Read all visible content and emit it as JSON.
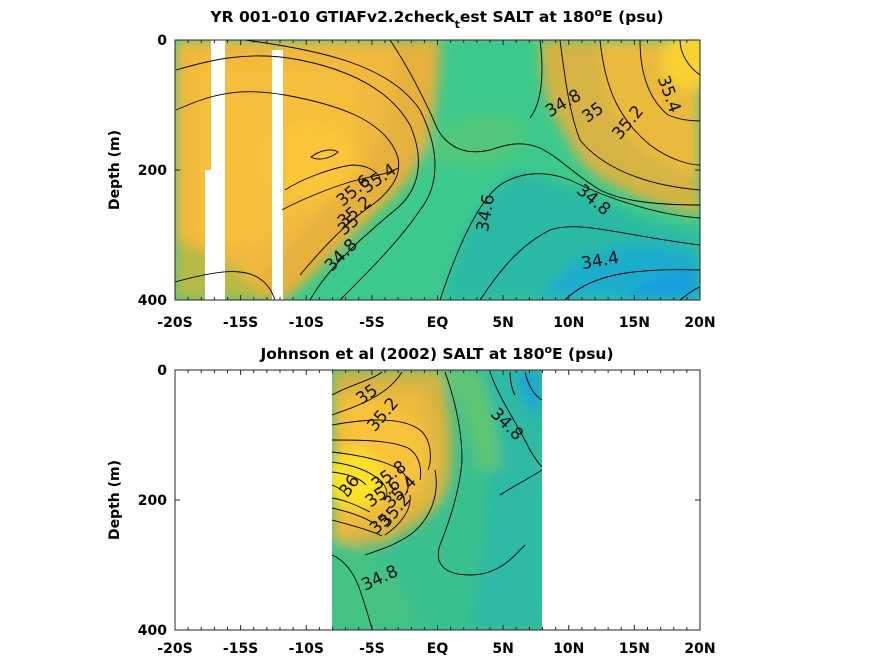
{
  "chart_data": [
    {
      "type": "heatmap",
      "subtype": "filled-contour",
      "title_prefix": "YR 001-010 GTIAFv2.2check",
      "title_sub": "t",
      "title_suffix": "est SALT at 180",
      "title_sup": "o",
      "title_end": "E (psu)",
      "ylabel": "Depth (m)",
      "xlim": [
        -20,
        20
      ],
      "ylim": [
        0,
        400
      ],
      "y_reversed": true,
      "x_ticks": [
        -20,
        -15,
        -10,
        -5,
        0,
        5,
        10,
        15,
        20
      ],
      "x_tick_labels": [
        "-20S",
        "-15S",
        "-10S",
        "-5S",
        "EQ",
        "5N",
        "10N",
        "15N",
        "20N"
      ],
      "y_ticks": [
        0,
        200,
        400
      ],
      "y_tick_labels": [
        "0",
        "200",
        "400"
      ],
      "colormap": "parula",
      "color_range": [
        34.3,
        36.0
      ],
      "missing_data": [
        {
          "x0": -17.2,
          "x1": -15.8,
          "y0": 0,
          "y1": 400
        },
        {
          "x0": -17.8,
          "x1": -17.2,
          "y0": 200,
          "y1": 400
        },
        {
          "x0": -12.5,
          "x1": -11.6,
          "y0": 15,
          "y1": 400
        }
      ],
      "salinity_maxima": [
        {
          "x": -10,
          "y": 180,
          "value": 35.7
        },
        {
          "x": -18,
          "y": 100,
          "value": 35.6
        },
        {
          "x": 19.5,
          "y": 40,
          "value": 35.55
        },
        {
          "x": 15,
          "y": 210,
          "value": 35.2
        }
      ],
      "salinity_minimum": {
        "x": 17,
        "y": 350,
        "value": 34.3
      },
      "contour_labels": [
        {
          "x": -4.5,
          "y": 210,
          "text": "35.6"
        },
        {
          "x": -0.3,
          "y": 198,
          "text": "35.4"
        },
        {
          "x": -4.5,
          "y": 235,
          "text": "35.2"
        },
        {
          "x": -5,
          "y": 265,
          "text": "35"
        },
        {
          "x": -7,
          "y": 325,
          "text": "34.8"
        },
        {
          "x": 4,
          "y": 260,
          "text": "34.6"
        },
        {
          "x": 8.7,
          "y": 95,
          "text": "34.8"
        },
        {
          "x": 11.7,
          "y": 110,
          "text": "35"
        },
        {
          "x": 14.7,
          "y": 125,
          "text": "35.2"
        },
        {
          "x": 17.7,
          "y": 90,
          "text": "35.4"
        },
        {
          "x": 11,
          "y": 240,
          "text": "34.8"
        },
        {
          "x": 13.5,
          "y": 335,
          "text": "34.4"
        }
      ]
    },
    {
      "type": "heatmap",
      "subtype": "filled-contour",
      "title_prefix": "Johnson et al (2002) SALT at 180",
      "title_sup": "o",
      "title_end": "E (psu)",
      "ylabel": "Depth (m)",
      "xlim": [
        -20,
        20
      ],
      "ylim": [
        0,
        400
      ],
      "y_reversed": true,
      "x_ticks": [
        -20,
        -15,
        -10,
        -5,
        0,
        5,
        10,
        15,
        20
      ],
      "x_tick_labels": [
        "-20S",
        "-15S",
        "-10S",
        "-5S",
        "EQ",
        "5N",
        "10N",
        "15N",
        "20N"
      ],
      "y_ticks": [
        0,
        200,
        400
      ],
      "y_tick_labels": [
        "0",
        "200",
        "400"
      ],
      "colormap": "parula",
      "color_range": [
        34.3,
        36.0
      ],
      "data_x_range": [
        -8,
        8
      ],
      "salinity_maxima": [
        {
          "x": -7.5,
          "y": 180,
          "value": 36.1
        },
        {
          "x": -3.5,
          "y": 110,
          "value": 35.5
        }
      ],
      "contour_labels": [
        {
          "x": -5.5,
          "y": 40,
          "text": "35"
        },
        {
          "x": -3.7,
          "y": 70,
          "text": "35.2"
        },
        {
          "x": 5.1,
          "y": 85,
          "text": "34.8"
        },
        {
          "x": -6.7,
          "y": 165,
          "text": "36"
        },
        {
          "x": -4.0,
          "y": 170,
          "text": "35.8"
        },
        {
          "x": -3.3,
          "y": 180,
          "text": "35.6"
        },
        {
          "x": -2.8,
          "y": 190,
          "text": "35.4"
        },
        {
          "x": -2.8,
          "y": 210,
          "text": "35.2"
        },
        {
          "x": -4.2,
          "y": 235,
          "text": "35"
        },
        {
          "x": -5,
          "y": 315,
          "text": "34.8"
        }
      ]
    }
  ]
}
